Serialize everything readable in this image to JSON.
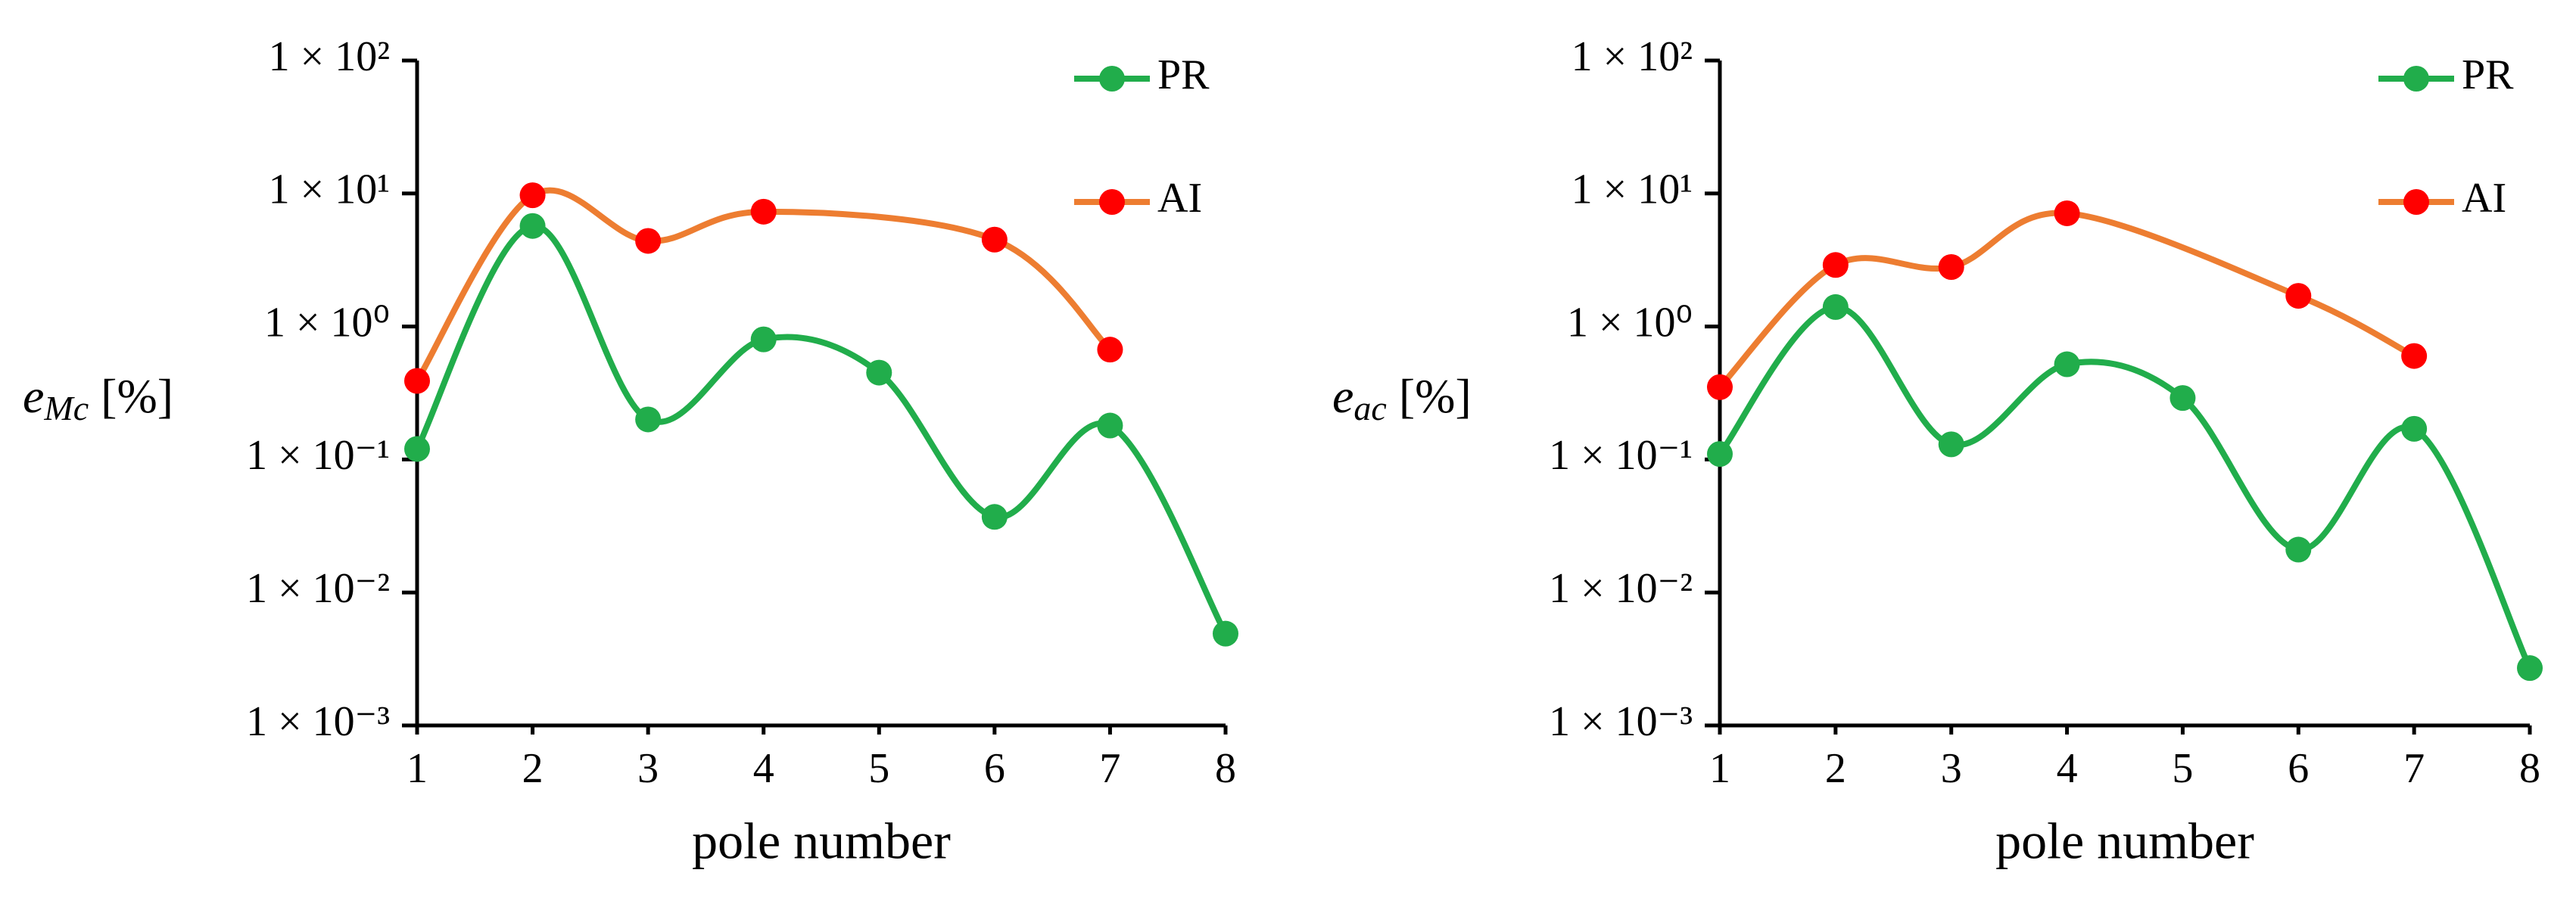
{
  "chart_data": [
    {
      "type": "line",
      "log_y": true,
      "legend": "top-right",
      "xlabel": "pole number",
      "ylabel": [
        "e",
        "Mc",
        "[%]"
      ],
      "xlim": [
        1,
        8
      ],
      "xticks": [
        1,
        2,
        3,
        4,
        5,
        6,
        7,
        8
      ],
      "ylim": [
        0.001,
        100
      ],
      "yticks": [
        {
          "value": 0.001,
          "label": "1 × 10⁻³"
        },
        {
          "value": 0.01,
          "label": "1 × 10⁻²"
        },
        {
          "value": 0.1,
          "label": "1 × 10⁻¹"
        },
        {
          "value": 1,
          "label": "1 × 10⁰"
        },
        {
          "value": 10,
          "label": "1 × 10¹"
        },
        {
          "value": 100,
          "label": "1 × 10²"
        }
      ],
      "series": [
        {
          "name": "PR",
          "color": "#21ad4b",
          "marker_color": "#21ad4b",
          "x": [
            1,
            2,
            3,
            4,
            5,
            6,
            7,
            8
          ],
          "values": [
            0.12,
            5.7,
            0.2,
            0.8,
            0.45,
            0.037,
            0.18,
            0.0049
          ]
        },
        {
          "name": "AI",
          "color": "#ed7d31",
          "marker_color": "#ff0000",
          "x": [
            1,
            2,
            3,
            4,
            6,
            7
          ],
          "values": [
            0.39,
            9.7,
            4.4,
            7.3,
            4.5,
            0.67
          ]
        }
      ]
    },
    {
      "type": "line",
      "log_y": true,
      "legend": "top-right",
      "xlabel": "pole number",
      "ylabel": [
        "e",
        "ac",
        "[%]"
      ],
      "xlim": [
        1,
        8
      ],
      "xticks": [
        1,
        2,
        3,
        4,
        5,
        6,
        7,
        8
      ],
      "ylim": [
        0.001,
        100
      ],
      "yticks": [
        {
          "value": 0.001,
          "label": "1 × 10⁻³"
        },
        {
          "value": 0.01,
          "label": "1 × 10⁻²"
        },
        {
          "value": 0.1,
          "label": "1 × 10⁻¹"
        },
        {
          "value": 1,
          "label": "1 × 10⁰"
        },
        {
          "value": 10,
          "label": "1 × 10¹"
        },
        {
          "value": 100,
          "label": "1 × 10²"
        }
      ],
      "series": [
        {
          "name": "PR",
          "color": "#21ad4b",
          "marker_color": "#21ad4b",
          "x": [
            1,
            2,
            3,
            4,
            5,
            6,
            7,
            8
          ],
          "values": [
            0.11,
            1.4,
            0.13,
            0.52,
            0.29,
            0.021,
            0.17,
            0.0027
          ]
        },
        {
          "name": "AI",
          "color": "#ed7d31",
          "marker_color": "#ff0000",
          "x": [
            1,
            2,
            3,
            4,
            6,
            7
          ],
          "values": [
            0.35,
            2.9,
            2.8,
            7.1,
            1.7,
            0.6
          ]
        }
      ]
    }
  ]
}
